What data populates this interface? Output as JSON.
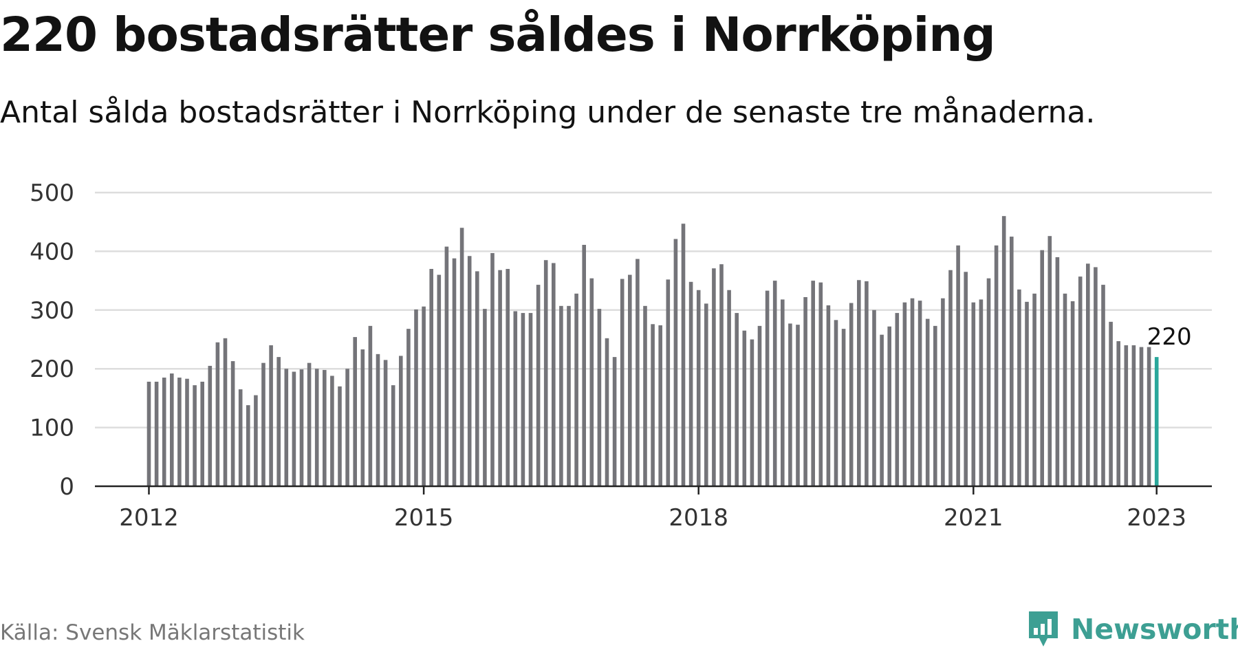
{
  "title": "220 bostadsrätter såldes i Norrköping",
  "subtitle": "Antal sålda bostadsrätter i Norrköping under de senaste tre månaderna.",
  "footer": {
    "source": "Källa: Svensk Mäklarstatistik",
    "brand": "Newsworthy"
  },
  "colors": {
    "bar": "#747479",
    "highlight": "#2aa79b",
    "grid": "#dddddd",
    "axis": "#222222",
    "brand": "#3d9f93"
  },
  "icons": {
    "brand_logo": "bar-chart-speech-bubble-icon"
  },
  "chart_data": {
    "type": "bar",
    "x_start": "2012-01",
    "x_tick_labels": [
      "2012",
      "2015",
      "2018",
      "2021",
      "2023"
    ],
    "y_tick_labels": [
      "0",
      "100",
      "200",
      "300",
      "400",
      "500"
    ],
    "ylim": [
      0,
      500
    ],
    "grid": true,
    "highlight_index": 132,
    "annotation": "220",
    "values": [
      178,
      178,
      185,
      192,
      185,
      183,
      172,
      178,
      205,
      245,
      252,
      213,
      165,
      138,
      155,
      210,
      240,
      220,
      200,
      195,
      199,
      210,
      200,
      198,
      188,
      170,
      200,
      254,
      233,
      273,
      225,
      215,
      172,
      222,
      268,
      301,
      306,
      370,
      360,
      408,
      388,
      440,
      392,
      366,
      302,
      397,
      368,
      370,
      298,
      295,
      295,
      343,
      385,
      380,
      307,
      307,
      328,
      411,
      354,
      302,
      252,
      220,
      353,
      360,
      387,
      307,
      276,
      274,
      352,
      421,
      447,
      348,
      334,
      311,
      371,
      378,
      334,
      295,
      265,
      250,
      273,
      333,
      350,
      318,
      277,
      275,
      322,
      350,
      347,
      308,
      283,
      268,
      312,
      351,
      349,
      300,
      258,
      272,
      295,
      313,
      320,
      316,
      285,
      273,
      320,
      368,
      410,
      365,
      313,
      318,
      354,
      410,
      460,
      425,
      335,
      314,
      328,
      402,
      426,
      390,
      328,
      315,
      357,
      379,
      373,
      343,
      280,
      247,
      240,
      240,
      237,
      237,
      220
    ]
  }
}
